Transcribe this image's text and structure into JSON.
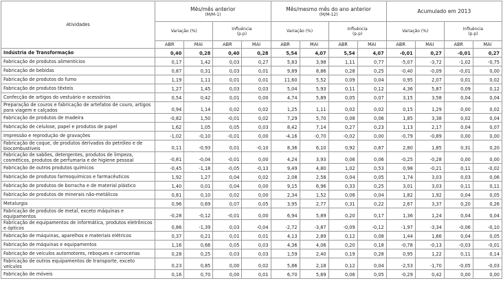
{
  "header": {
    "activity": "Atividades",
    "months": [
      "ABR",
      "MAI"
    ],
    "groups": [
      {
        "title": "Mês/mês anterior",
        "subtitle": "(M/M-1)",
        "columns": [
          {
            "label": "Variação (%)"
          },
          {
            "label": "Influência",
            "unit": "(p.p)"
          }
        ]
      },
      {
        "title": "Mês/mesmo mês do ano anterior",
        "subtitle": "(M/M-12)",
        "columns": [
          {
            "label": "Variação (%)"
          },
          {
            "label": "Influência",
            "unit": "(p.p)"
          }
        ]
      },
      {
        "title": "Acumulado em 2013",
        "columns": [
          {
            "label": "Variação (%)"
          },
          {
            "label": "Influência",
            "unit": "(p.p)"
          }
        ]
      }
    ]
  },
  "rows": [
    {
      "label": "Indústria de Transformação",
      "values": [
        "0,40",
        "0,28",
        "0,40",
        "0,28",
        "5,54",
        "4,07",
        "5,54",
        "4,07",
        "-0,01",
        "0,27",
        "-0,01",
        "0,27"
      ]
    },
    {
      "label": "Fabricação de produtos alimentícios",
      "values": [
        "0,17",
        "1,42",
        "0,03",
        "0,27",
        "5,83",
        "3,98",
        "1,11",
        "0,77",
        "-5,07",
        "-3,72",
        "-1,02",
        "-0,75"
      ]
    },
    {
      "label": "Fabricação de bebidas",
      "values": [
        "0,87",
        "0,31",
        "0,03",
        "0,01",
        "9,89",
        "8,86",
        "0,28",
        "0,25",
        "-0,40",
        "-0,09",
        "-0,01",
        "0,00"
      ]
    },
    {
      "label": "Fabricação de produtos do fumo",
      "values": [
        "1,19",
        "1,11",
        "0,01",
        "0,01",
        "11,60",
        "5,52",
        "0,09",
        "0,04",
        "0,95",
        "2,07",
        "0,01",
        "0,02"
      ]
    },
    {
      "label": "Fabricação de produtos têxteis",
      "values": [
        "1,27",
        "1,45",
        "0,03",
        "0,03",
        "5,04",
        "5,93",
        "0,11",
        "0,12",
        "4,36",
        "5,87",
        "0,09",
        "0,12"
      ]
    },
    {
      "label": "Confecção de artigos do vestuário e acessórios",
      "values": [
        "0,54",
        "0,42",
        "0,01",
        "0,00",
        "4,74",
        "5,89",
        "0,05",
        "0,07",
        "3,15",
        "3,58",
        "0,04",
        "0,04"
      ]
    },
    {
      "label": "Preparação de couros e fabricação de artefatos de couro, artigos para viagem e calçados",
      "values": [
        "0,94",
        "1,14",
        "0,02",
        "0,02",
        "1,25",
        "1,11",
        "0,02",
        "0,02",
        "0,15",
        "1,29",
        "0,00",
        "0,02"
      ]
    },
    {
      "label": "Fabricação de produtos de madeira",
      "values": [
        "-0,82",
        "1,50",
        "-0,01",
        "0,02",
        "7,29",
        "5,70",
        "0,08",
        "0,06",
        "1,85",
        "3,38",
        "0,02",
        "0,04"
      ]
    },
    {
      "label": "Fabricação de celulose, papel e produtos de papel",
      "values": [
        "1,62",
        "1,05",
        "0,05",
        "0,03",
        "8,42",
        "7,14",
        "0,27",
        "0,23",
        "1,13",
        "2,17",
        "0,04",
        "0,07"
      ]
    },
    {
      "label": "Impressão e reprodução de gravações",
      "values": [
        "-1,02",
        "-0,10",
        "-0,01",
        "0,00",
        "-4,16",
        "-0,70",
        "-0,02",
        "0,00",
        "-0,79",
        "-0,89",
        "0,00",
        "0,00"
      ]
    },
    {
      "label": "Fabricação de coque, de produtos derivados do petróleo e de biocombustíveis",
      "values": [
        "0,11",
        "-0,93",
        "0,01",
        "-0,10",
        "8,36",
        "6,10",
        "0,92",
        "0,67",
        "2,80",
        "1,85",
        "0,31",
        "0,20"
      ]
    },
    {
      "label": "Fabricação de sabões, detergentes, produtos de limpeza, cosméticos, produtos de perfumaria e de higiene pessoal",
      "values": [
        "-0,81",
        "-0,04",
        "-0,01",
        "0,00",
        "4,24",
        "3,93",
        "0,06",
        "0,06",
        "-0,25",
        "-0,28",
        "0,00",
        "0,00"
      ]
    },
    {
      "label": "Fabricação de outros produtos químicos",
      "values": [
        "-0,45",
        "-1,18",
        "-0,05",
        "-0,13",
        "9,49",
        "4,80",
        "1,02",
        "0,53",
        "0,98",
        "-0,21",
        "0,11",
        "-0,02"
      ]
    },
    {
      "label": "Fabricação de produtos farmoquímicos e farmacêuticos",
      "values": [
        "1,92",
        "1,27",
        "0,04",
        "0,02",
        "2,08",
        "2,58",
        "0,04",
        "0,05",
        "1,74",
        "3,03",
        "0,03",
        "0,06"
      ]
    },
    {
      "label": "Fabricação de produtos de borracha e de material plástico",
      "values": [
        "1,40",
        "0,01",
        "0,04",
        "0,00",
        "9,15",
        "6,96",
        "0,33",
        "0,25",
        "3,01",
        "3,03",
        "0,11",
        "0,11"
      ]
    },
    {
      "label": "Fabricação de produtos de minerais não-metálicos",
      "values": [
        "0,81",
        "0,10",
        "0,02",
        "0,00",
        "2,34",
        "1,52",
        "0,06",
        "0,04",
        "1,82",
        "1,92",
        "0,04",
        "0,05"
      ]
    },
    {
      "label": "Metalurgia",
      "values": [
        "0,96",
        "0,69",
        "0,07",
        "0,05",
        "3,95",
        "2,77",
        "0,31",
        "0,22",
        "2,67",
        "3,37",
        "0,20",
        "0,26"
      ]
    },
    {
      "label": "Fabricação de produtos de metal, exceto máquinas e equipamentos",
      "values": [
        "-0,28",
        "-0,12",
        "-0,01",
        "0,00",
        "6,94",
        "5,89",
        "0,20",
        "0,17",
        "1,36",
        "1,24",
        "0,04",
        "0,04"
      ]
    },
    {
      "label": "Fabricação de equipamentos de informática, produtos eletrônicos e ópticos",
      "values": [
        "0,86",
        "-1,39",
        "0,03",
        "-0,04",
        "-2,72",
        "-3,87",
        "-0,09",
        "-0,12",
        "-1,97",
        "-3,34",
        "-0,06",
        "-0,10"
      ]
    },
    {
      "label": "Fabricação de máquinas, aparelhos e materiais elétricos",
      "values": [
        "0,37",
        "0,21",
        "0,01",
        "0,01",
        "4,13",
        "2,89",
        "0,12",
        "0,08",
        "1,44",
        "1,66",
        "0,04",
        "0,05"
      ]
    },
    {
      "label": "Fabricação de máquinas e equipamentos",
      "values": [
        "1,16",
        "0,66",
        "0,05",
        "0,03",
        "4,36",
        "4,06",
        "0,20",
        "0,18",
        "-0,78",
        "-0,13",
        "-0,03",
        "-0,01"
      ]
    },
    {
      "label": "Fabricação de veículos automotores, reboques e carrocerias",
      "values": [
        "0,28",
        "0,25",
        "0,03",
        "0,03",
        "1,59",
        "2,40",
        "0,19",
        "0,28",
        "0,95",
        "1,22",
        "0,11",
        "0,14"
      ]
    },
    {
      "label": "Fabricação de outros equipamentos de transporte, exceto veículos",
      "values": [
        "0,23",
        "0,85",
        "0,00",
        "0,02",
        "5,86",
        "2,18",
        "0,12",
        "0,04",
        "-2,53",
        "-1,70",
        "-0,05",
        "-0,03"
      ]
    },
    {
      "label": "Fabricação de móveis",
      "values": [
        "0,16",
        "0,70",
        "0,00",
        "0,01",
        "6,70",
        "5,69",
        "0,06",
        "0,05",
        "-0,29",
        "0,42",
        "0,00",
        "0,00"
      ]
    }
  ]
}
